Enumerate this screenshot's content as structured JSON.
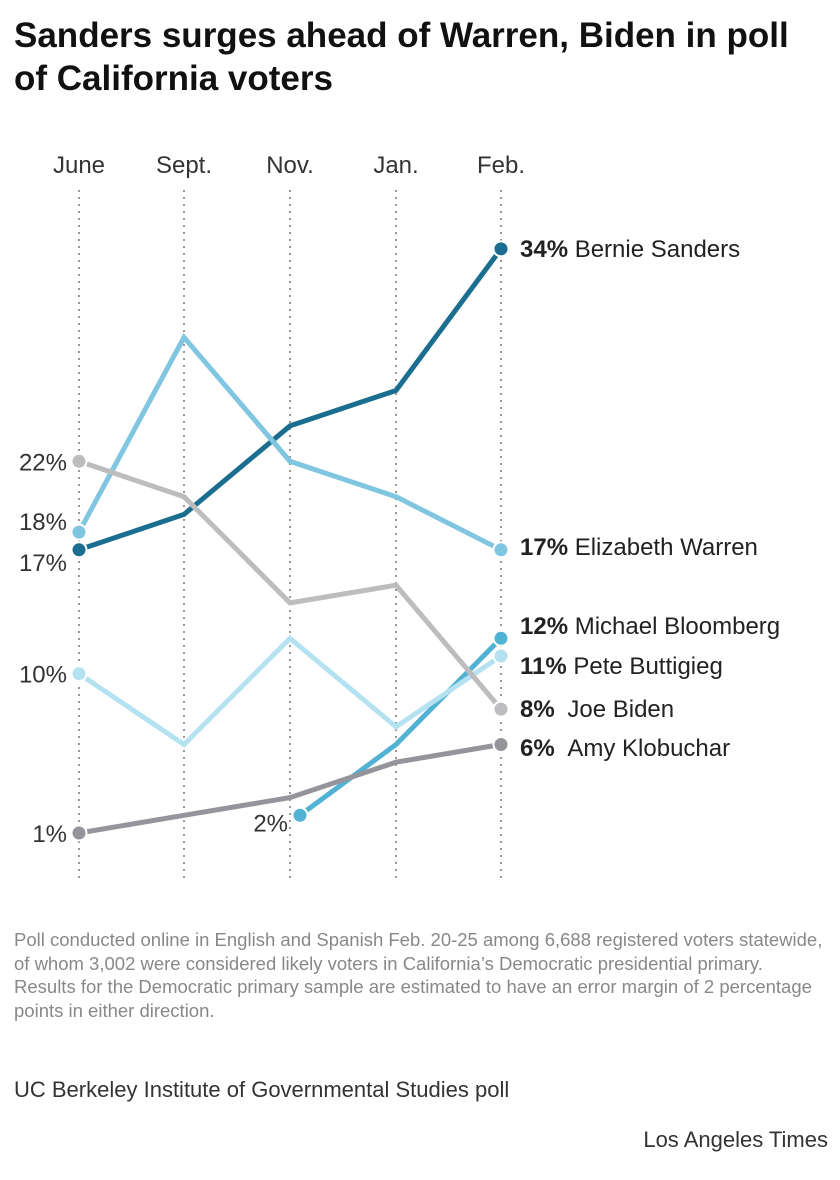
{
  "title": "Sanders surges ahead of Warren, Biden in poll of California voters",
  "note": "Poll conducted online in English and Spanish Feb. 20-25 among 6,688 registered voters statewide, of whom 3,002  were considered likely voters in California’s Democratic presidential primary. Results for the Democratic primary sample are estimated to have an error margin of 2 percentage points in either direction.",
  "source": "UC Berkeley Institute of Governmental Studies poll",
  "credit": "Los Angeles Times",
  "chart_data": {
    "type": "line",
    "title": "Sanders surges ahead of Warren, Biden in poll of California voters",
    "categories": [
      "June",
      "Sept.",
      "Nov.",
      "Jan.",
      "Feb."
    ],
    "ylim": [
      0,
      35
    ],
    "grid": "vertical dotted",
    "legend": "direct labels at right",
    "series": [
      {
        "name": "Bernie Sanders",
        "color": "#1b6e8f",
        "values": [
          17,
          19,
          24,
          26,
          34
        ],
        "start_label": "17%",
        "end_label": "34%"
      },
      {
        "name": "Elizabeth Warren",
        "color": "#80c6e1",
        "values": [
          18,
          29,
          22,
          20,
          17
        ],
        "start_label": "18%",
        "end_label": "17%"
      },
      {
        "name": "Michael Bloomberg",
        "color": "#52b2d4",
        "values": [
          null,
          null,
          2,
          6,
          12
        ],
        "start_label": "2%",
        "end_label": "12%"
      },
      {
        "name": "Pete Buttigieg",
        "color": "#b4e2f0",
        "values": [
          10,
          6,
          12,
          7,
          11
        ],
        "start_label": "10%",
        "end_label": "11%"
      },
      {
        "name": "Joe Biden",
        "color": "#bdbdbf",
        "values": [
          22,
          20,
          14,
          15,
          8
        ],
        "start_label": "22%",
        "end_label": "8%"
      },
      {
        "name": "Amy Klobuchar",
        "color": "#94949a",
        "values": [
          1,
          2,
          3,
          5,
          6
        ],
        "start_label": "1%",
        "end_label": "6%"
      }
    ]
  }
}
